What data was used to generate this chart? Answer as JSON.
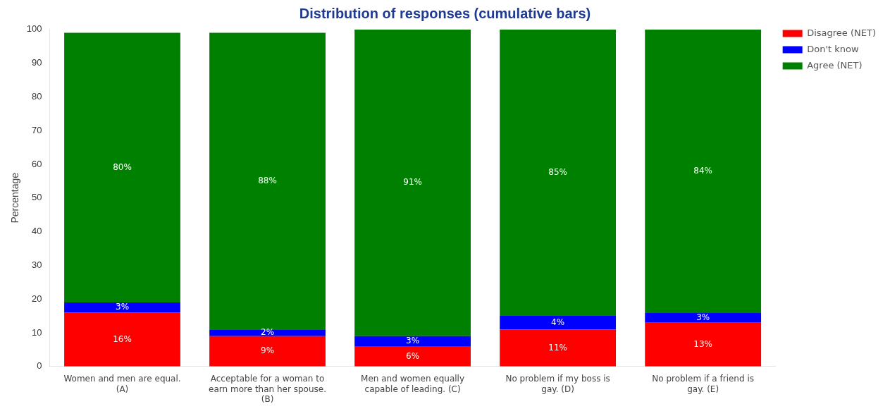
{
  "chart_data": {
    "type": "bar",
    "title": "Distribution of responses (cumulative bars)",
    "ylabel": "Percentage",
    "categories": [
      "Women and men are equal. (A)",
      "Acceptable for a woman to earn more than her spouse. (B)",
      "Men and women equally capable of leading. (C)",
      "No problem if my boss is gay. (D)",
      "No problem if a friend is gay. (E)"
    ],
    "stacked": true,
    "series": [
      {
        "name": "Disagree (NET)",
        "color": "#ff0000",
        "values": [
          16,
          9,
          6,
          11,
          13
        ],
        "value_labels": [
          "16%",
          "9%",
          "6%",
          "11%",
          "13%"
        ]
      },
      {
        "name": "Don't know",
        "color": "#0000ff",
        "values": [
          3,
          2,
          3,
          4,
          3
        ],
        "value_labels": [
          "3%",
          "2%",
          "3%",
          "4%",
          "3%"
        ]
      },
      {
        "name": "Agree (NET)",
        "color": "#008000",
        "values": [
          80,
          88,
          91,
          85,
          84
        ],
        "value_labels": [
          "80%",
          "88%",
          "91%",
          "85%",
          "84%"
        ]
      }
    ],
    "ylim": [
      0,
      100
    ],
    "yticks": [
      0,
      10,
      20,
      30,
      40,
      50,
      60,
      70,
      80,
      90,
      100
    ],
    "grid": false,
    "legend": "top right"
  }
}
